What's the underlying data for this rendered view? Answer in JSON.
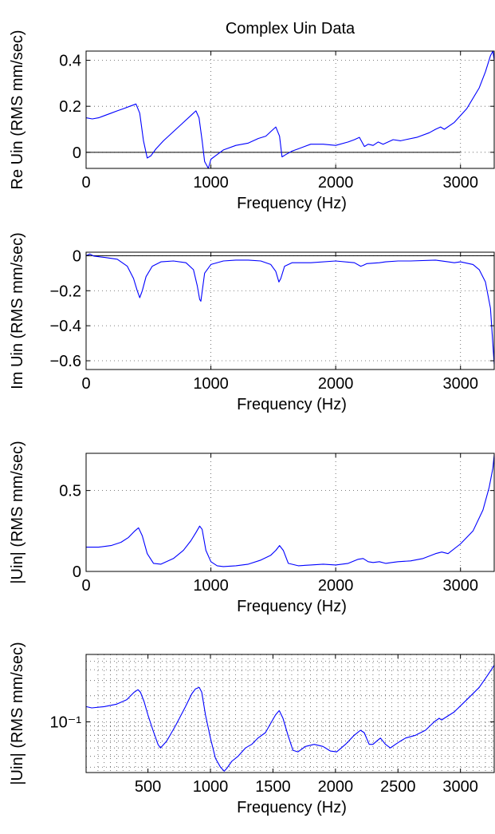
{
  "figure_title": "Complex Uin Data",
  "chart_data": [
    {
      "type": "line",
      "title": "Complex Uin Data",
      "xlabel": "Frequency (Hz)",
      "ylabel": "Re Uin (RMS mm/sec)",
      "xlim": [
        0,
        3270
      ],
      "ylim": [
        -0.07,
        0.44
      ],
      "yscale": "linear",
      "grid": true,
      "xticks": [
        0,
        1000,
        2000,
        3000
      ],
      "xtick_labels": [
        "0",
        "1000",
        "2000",
        "3000"
      ],
      "yticks": [
        0,
        0.2,
        0.4
      ],
      "ytick_labels": [
        "0",
        "0.2",
        "0.4"
      ],
      "reference_line": {
        "y": 0,
        "x_range": [
          0,
          3000
        ]
      },
      "series": [
        {
          "color": "#0000ff",
          "x": [
            0,
            50,
            100,
            150,
            200,
            250,
            300,
            350,
            400,
            430,
            460,
            490,
            520,
            560,
            620,
            700,
            780,
            840,
            880,
            905,
            930,
            950,
            980,
            1000,
            1050,
            1100,
            1200,
            1300,
            1380,
            1440,
            1480,
            1520,
            1550,
            1570,
            1600,
            1650,
            1700,
            1800,
            1900,
            2000,
            2100,
            2150,
            2190,
            2230,
            2260,
            2300,
            2340,
            2380,
            2420,
            2460,
            2520,
            2560,
            2650,
            2750,
            2800,
            2840,
            2870,
            2950,
            3050,
            3150,
            3200,
            3240,
            3260,
            3270
          ],
          "y": [
            0.15,
            0.145,
            0.15,
            0.16,
            0.17,
            0.18,
            0.19,
            0.2,
            0.21,
            0.17,
            0.05,
            -0.025,
            -0.015,
            0.015,
            0.05,
            0.09,
            0.13,
            0.16,
            0.18,
            0.15,
            0.05,
            -0.04,
            -0.07,
            -0.03,
            -0.01,
            0.01,
            0.03,
            0.04,
            0.06,
            0.07,
            0.09,
            0.11,
            0.07,
            -0.02,
            -0.01,
            0.005,
            0.015,
            0.035,
            0.035,
            0.03,
            0.045,
            0.055,
            0.065,
            0.025,
            0.035,
            0.03,
            0.045,
            0.035,
            0.045,
            0.055,
            0.05,
            0.055,
            0.065,
            0.085,
            0.1,
            0.11,
            0.1,
            0.13,
            0.19,
            0.28,
            0.35,
            0.42,
            0.44,
            0.4
          ]
        }
      ]
    },
    {
      "type": "line",
      "title": "",
      "xlabel": "Frequency (Hz)",
      "ylabel": "Im Uin (RMS mm/sec)",
      "xlim": [
        0,
        3270
      ],
      "ylim": [
        -0.65,
        0.02
      ],
      "yscale": "linear",
      "grid": true,
      "xticks": [
        0,
        1000,
        2000,
        3000
      ],
      "xtick_labels": [
        "0",
        "1000",
        "2000",
        "3000"
      ],
      "yticks": [
        0,
        -0.2,
        -0.4,
        -0.6
      ],
      "ytick_labels": [
        "0",
        "−0.2",
        "−0.4",
        "−0.6"
      ],
      "reference_line": {
        "y": 0,
        "x_range": [
          0,
          3270
        ]
      },
      "series": [
        {
          "color": "#0000ff",
          "x": [
            0,
            30,
            60,
            150,
            250,
            330,
            380,
            410,
            430,
            450,
            480,
            530,
            600,
            700,
            800,
            860,
            890,
            910,
            920,
            950,
            1000,
            1100,
            1200,
            1300,
            1400,
            1480,
            1520,
            1545,
            1560,
            1590,
            1650,
            1800,
            2000,
            2150,
            2200,
            2220,
            2250,
            2350,
            2400,
            2500,
            2600,
            2800,
            2900,
            2950,
            3000,
            3100,
            3150,
            3200,
            3240,
            3270
          ],
          "y": [
            0.0,
            0.01,
            -0.002,
            -0.01,
            -0.02,
            -0.06,
            -0.13,
            -0.2,
            -0.24,
            -0.2,
            -0.12,
            -0.06,
            -0.035,
            -0.03,
            -0.04,
            -0.08,
            -0.17,
            -0.25,
            -0.26,
            -0.1,
            -0.05,
            -0.03,
            -0.025,
            -0.025,
            -0.03,
            -0.05,
            -0.09,
            -0.15,
            -0.13,
            -0.06,
            -0.04,
            -0.04,
            -0.03,
            -0.04,
            -0.06,
            -0.055,
            -0.045,
            -0.04,
            -0.035,
            -0.03,
            -0.03,
            -0.025,
            -0.035,
            -0.04,
            -0.035,
            -0.05,
            -0.08,
            -0.15,
            -0.3,
            -0.62
          ]
        }
      ]
    },
    {
      "type": "line",
      "title": "",
      "xlabel": "Frequency (Hz)",
      "ylabel": "|Uin| (RMS mm/sec)",
      "xlim": [
        0,
        3270
      ],
      "ylim": [
        0,
        0.73
      ],
      "yscale": "linear",
      "grid": true,
      "xticks": [
        0,
        1000,
        2000,
        3000
      ],
      "xtick_labels": [
        "0",
        "1000",
        "2000",
        "3000"
      ],
      "yticks": [
        0,
        0.5
      ],
      "ytick_labels": [
        "0",
        "0.5"
      ],
      "series": [
        {
          "color": "#0000ff",
          "x": [
            0,
            100,
            200,
            280,
            340,
            390,
            420,
            450,
            490,
            540,
            600,
            700,
            780,
            840,
            880,
            910,
            930,
            960,
            1000,
            1050,
            1100,
            1200,
            1300,
            1400,
            1480,
            1520,
            1550,
            1580,
            1620,
            1700,
            1800,
            1900,
            2000,
            2100,
            2180,
            2220,
            2260,
            2300,
            2350,
            2400,
            2450,
            2500,
            2600,
            2700,
            2800,
            2850,
            2900,
            3000,
            3100,
            3180,
            3230,
            3260,
            3270
          ],
          "y": [
            0.15,
            0.15,
            0.16,
            0.18,
            0.21,
            0.25,
            0.27,
            0.22,
            0.11,
            0.05,
            0.045,
            0.08,
            0.13,
            0.19,
            0.24,
            0.28,
            0.26,
            0.13,
            0.06,
            0.035,
            0.03,
            0.035,
            0.045,
            0.07,
            0.1,
            0.13,
            0.16,
            0.13,
            0.05,
            0.035,
            0.04,
            0.045,
            0.04,
            0.05,
            0.075,
            0.08,
            0.06,
            0.055,
            0.06,
            0.05,
            0.055,
            0.06,
            0.065,
            0.08,
            0.11,
            0.12,
            0.11,
            0.17,
            0.25,
            0.38,
            0.52,
            0.64,
            0.72
          ]
        }
      ]
    },
    {
      "type": "line",
      "title": "",
      "xlabel": "Frequency (Hz)",
      "ylabel": "|Uin| (RMS mm/sec)",
      "xlim": [
        5,
        3270
      ],
      "ylim": [
        0.026,
        0.6
      ],
      "yscale": "log",
      "grid": true,
      "xticks": [
        500,
        1000,
        1500,
        2000,
        2500,
        3000
      ],
      "xtick_labels": [
        "500",
        "1000",
        "1500",
        "2000",
        "2500",
        "3000"
      ],
      "yticks": [
        0.1
      ],
      "ytick_labels": [
        "10⁻¹"
      ],
      "series": [
        {
          "color": "#0000ff",
          "x": [
            5,
            50,
            150,
            250,
            330,
            390,
            420,
            440,
            470,
            500,
            540,
            580,
            600,
            650,
            720,
            800,
            850,
            880,
            910,
            930,
            960,
            1000,
            1040,
            1080,
            1110,
            1130,
            1170,
            1220,
            1280,
            1330,
            1380,
            1440,
            1480,
            1520,
            1550,
            1580,
            1620,
            1660,
            1700,
            1760,
            1830,
            1900,
            1960,
            2010,
            2080,
            2150,
            2200,
            2230,
            2270,
            2300,
            2330,
            2360,
            2400,
            2440,
            2480,
            2520,
            2560,
            2640,
            2720,
            2790,
            2830,
            2850,
            2870,
            2950,
            3050,
            3150,
            3220,
            3270
          ],
          "y": [
            0.15,
            0.145,
            0.15,
            0.16,
            0.18,
            0.22,
            0.235,
            0.22,
            0.17,
            0.12,
            0.08,
            0.055,
            0.05,
            0.06,
            0.09,
            0.15,
            0.21,
            0.24,
            0.25,
            0.22,
            0.12,
            0.065,
            0.038,
            0.03,
            0.027,
            0.029,
            0.035,
            0.04,
            0.05,
            0.055,
            0.065,
            0.075,
            0.095,
            0.12,
            0.135,
            0.11,
            0.07,
            0.047,
            0.045,
            0.052,
            0.055,
            0.052,
            0.046,
            0.045,
            0.055,
            0.07,
            0.08,
            0.075,
            0.055,
            0.055,
            0.06,
            0.065,
            0.055,
            0.05,
            0.055,
            0.06,
            0.065,
            0.07,
            0.08,
            0.1,
            0.11,
            0.105,
            0.11,
            0.13,
            0.18,
            0.25,
            0.35,
            0.45
          ]
        }
      ]
    }
  ]
}
